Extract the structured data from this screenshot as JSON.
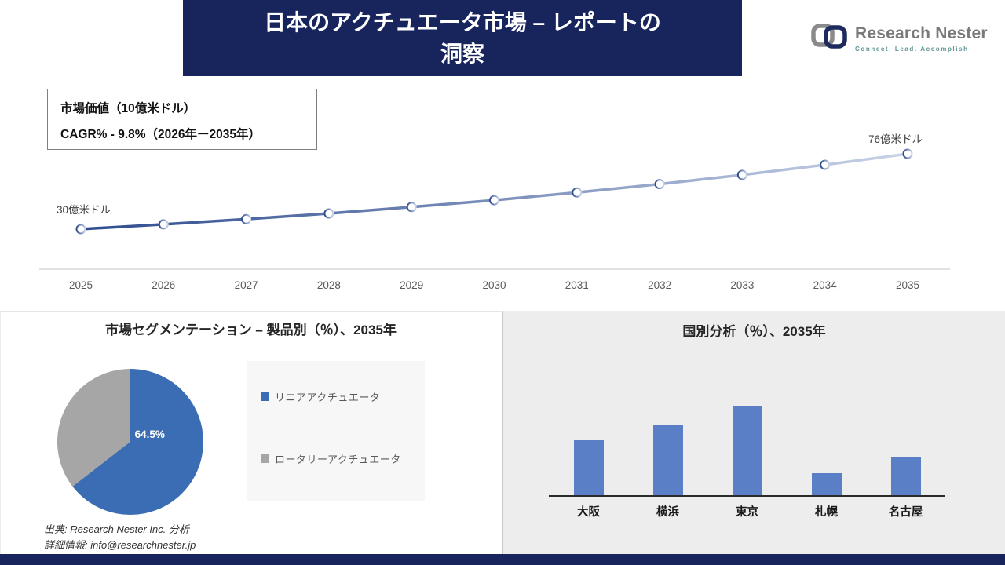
{
  "header": {
    "title_line1": "日本のアクチュエータ市場 – レポートの",
    "title_line2": "洞察",
    "logo": {
      "name": "Research Nester",
      "tagline": "Connect. Lead. Accomplish",
      "icon": "chain-links-icon"
    }
  },
  "annotation_box": {
    "line1": "市場価値（10億米ドル）",
    "line2": "CAGR% - 9.8%（2026年ー2035年）"
  },
  "line_chart_labels": {
    "start": "30億米ドル",
    "end": "76億米ドル"
  },
  "segmentation_panel": {
    "title": "市場セグメンテーション – 製品別（％）、2035年",
    "pie_label": "64.5%"
  },
  "country_panel": {
    "title": "国別分析（％）、2035年"
  },
  "source": {
    "line1": "出典: Research Nester Inc. 分析",
    "line2": "詳細情報: info@researchnester.jp"
  },
  "colors": {
    "navy": "#17255c",
    "panel_gray": "#ededed",
    "pie_blue": "#3a6db3",
    "pie_gray": "#a6a6a6",
    "bar_blue": "#5b7fc7",
    "line_gradient_start": "#2d4b8e",
    "line_gradient_end": "#c9d3e8"
  },
  "chart_data": [
    {
      "type": "line",
      "title": "市場価値（10億米ドル）",
      "x": [
        2025,
        2026,
        2027,
        2028,
        2029,
        2030,
        2031,
        2032,
        2033,
        2034,
        2035
      ],
      "values": [
        30,
        32.9,
        36.1,
        39.6,
        43.5,
        47.7,
        52.4,
        57.5,
        63.1,
        69.3,
        76
      ],
      "unit": "億米ドル",
      "start_label": "30億米ドル",
      "end_label": "76億米ドル",
      "cagr_note": "CAGR% - 9.8%（2026年ー2035年）",
      "marker": "open-circle",
      "grid": false,
      "line_gradient": [
        "#2d4b8e",
        "#c9d3e8"
      ]
    },
    {
      "type": "pie",
      "title": "市場セグメンテーション – 製品別（％）、2035年",
      "labels": [
        "リニアアクチュエータ",
        "ロータリーアクチュエータ"
      ],
      "values": [
        64.5,
        35.5
      ],
      "colors": [
        "#3a6db3",
        "#a6a6a6"
      ],
      "data_label": "64.5%",
      "legend_position": "right"
    },
    {
      "type": "bar",
      "title": "国別分析（％）、2035年",
      "categories": [
        "大阪",
        "横浜",
        "東京",
        "札幌",
        "名古屋"
      ],
      "values": [
        18.5,
        24,
        30,
        7.5,
        13
      ],
      "bar_color": "#5b7fc7",
      "ylim": [
        0,
        32
      ],
      "grid": false
    }
  ]
}
